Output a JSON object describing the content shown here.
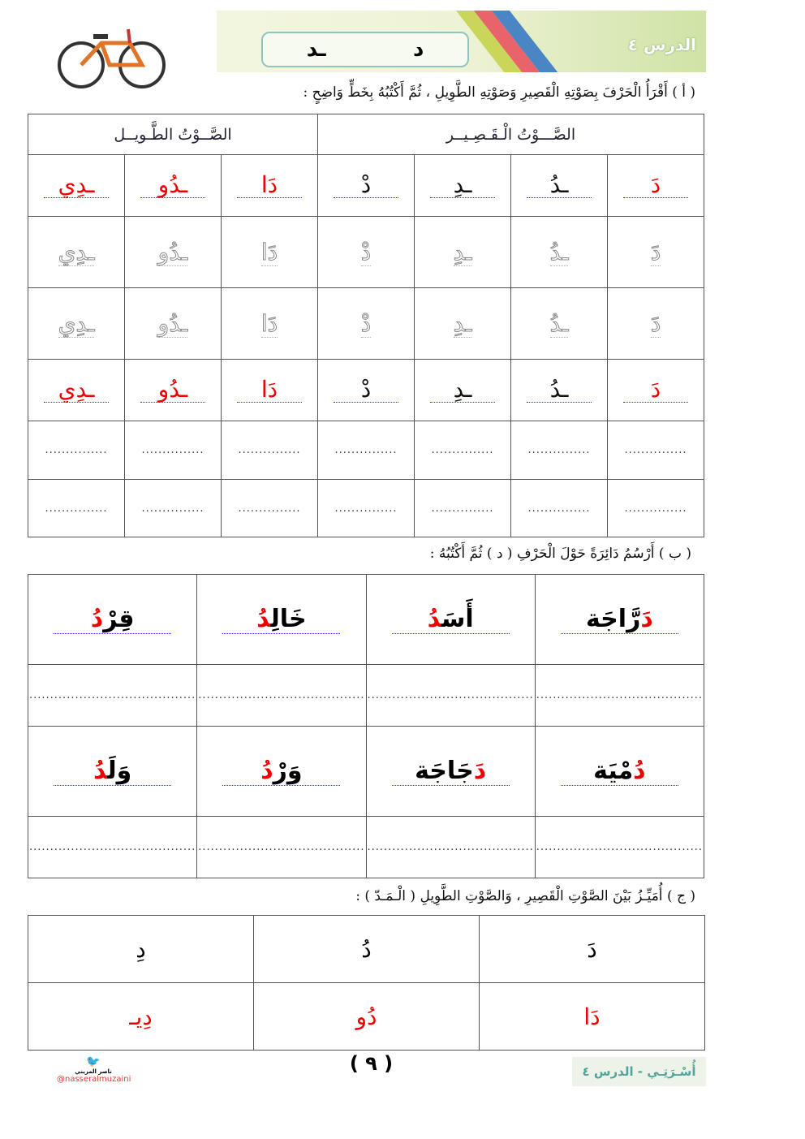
{
  "header": {
    "lesson_label": "الدرس ٤",
    "letter_forms": [
      "د",
      "ـد"
    ]
  },
  "section_a": {
    "instruction": "( أ ) أَقْرَأُ الْحَرْفَ بِصَوْتِهِ الْقَصِيرِ وَصَوْتِهِ الطَّوِيلِ ، ثُمَّ أَكْتُبُهُ بِخَطٍّ وَاضِحٍ :",
    "short_header": "الصَّـــوْتُ الْـقَـصِـيــر",
    "long_header": "الصَّــوْتُ الطَّـويــل",
    "letters": [
      "دَ",
      "ـدُ",
      "ـدِ",
      "دْ",
      "دَا",
      "ـدُو",
      "ـدِي"
    ],
    "dots": "..............."
  },
  "section_b": {
    "instruction": "( ب ) أَرْسُمُ دَائِرَةً حَوْلَ الْحَرْفِ ( د ) ثُمَّ أَكْتُبُهُ :",
    "row1": [
      {
        "red": "دَ",
        "rest": "رَّاجَة",
        "first": true
      },
      {
        "pre": "أَسَ",
        "red": "دُ"
      },
      {
        "pre": "خَالِ",
        "red": "دُ"
      },
      {
        "pre": "قِرْ",
        "red": "دُ"
      }
    ],
    "row2": [
      {
        "red": "دُ",
        "rest": "مْيَة",
        "first": true
      },
      {
        "red": "دَ",
        "rest": "جَاجَة",
        "first": true
      },
      {
        "pre": "وَرْ",
        "red": "دُ"
      },
      {
        "pre": "وَلَ",
        "red": "دُ"
      }
    ],
    "dots": "........................................"
  },
  "section_c": {
    "instruction": "( ج ) أُمَيِّـزُ بَيْنَ الصَّوْتِ الْقَصِيرِ ، وَالصَّوْتِ الطَّوِيلِ ( الْـمَـدّ ) :",
    "short": [
      "دَ",
      "دُ",
      "دِ"
    ],
    "long": [
      "دَا",
      "دُو",
      "دِيـ"
    ]
  },
  "footer": {
    "page_number": "( ٩ )",
    "author": "ناصر المزيني",
    "handle": "@nasseralmuzaini",
    "lesson_ref": "أُسْـرَتِـي - الدرس ٤"
  }
}
